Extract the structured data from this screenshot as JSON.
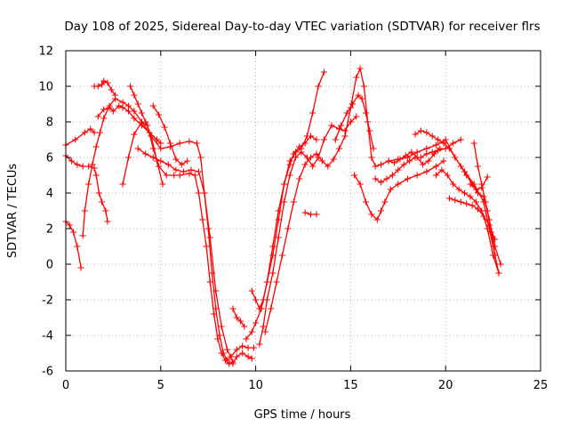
{
  "chart_data": {
    "type": "scatter",
    "title": "Day 108 of 2025, Sidereal Day-to-day VTEC variation (SDTVAR) for receiver flrs",
    "xlabel": "GPS time / hours",
    "ylabel": "SDTVAR / TECUs",
    "xlim": [
      0,
      25
    ],
    "ylim": [
      -6,
      12
    ],
    "x_ticks": [
      0,
      5,
      10,
      15,
      20,
      25
    ],
    "y_ticks": [
      -6,
      -4,
      -2,
      0,
      2,
      4,
      6,
      8,
      10,
      12
    ],
    "grid": true,
    "marker": "+",
    "color": "#ff0000",
    "series": [
      {
        "x": [
          0.0,
          0.5,
          1.0,
          1.3,
          1.5
        ],
        "y": [
          6.7,
          7.0,
          7.4,
          7.6,
          7.4
        ]
      },
      {
        "x": [
          0.0,
          0.3,
          0.6,
          0.9,
          1.2,
          1.5,
          1.6,
          1.75,
          1.9,
          2.1,
          2.2
        ],
        "y": [
          6.1,
          5.8,
          5.6,
          5.5,
          5.5,
          5.4,
          5.0,
          4.0,
          3.5,
          3.0,
          2.4
        ]
      },
      {
        "x": [
          0.0,
          0.2,
          0.4,
          0.6,
          0.8
        ],
        "y": [
          2.4,
          2.2,
          1.8,
          1.0,
          -0.2
        ]
      },
      {
        "x": [
          0.9,
          1.0,
          1.2,
          1.4,
          1.6,
          1.8,
          2.0,
          2.3,
          2.6,
          3.0,
          3.3,
          3.6,
          4.0,
          4.5,
          5.0,
          5.5,
          6.0,
          6.5,
          6.9,
          7.1,
          7.3,
          7.5,
          7.7,
          7.9,
          8.1,
          8.3,
          8.5,
          8.7,
          9.0,
          9.3,
          9.6,
          9.9
        ],
        "y": [
          1.6,
          3.0,
          4.5,
          5.6,
          6.6,
          7.4,
          8.2,
          8.9,
          9.3,
          9.1,
          8.9,
          8.6,
          8.0,
          7.2,
          6.5,
          6.6,
          6.8,
          6.9,
          6.8,
          6.0,
          4.0,
          2.0,
          -0.5,
          -2.5,
          -4.0,
          -5.0,
          -5.4,
          -5.2,
          -4.8,
          -4.6,
          -4.7,
          -4.7
        ]
      },
      {
        "x": [
          1.5,
          1.7,
          1.9,
          2.0,
          2.2,
          2.4,
          2.6
        ],
        "y": [
          10.0,
          10.0,
          10.1,
          10.3,
          10.2,
          9.8,
          9.5
        ]
      },
      {
        "x": [
          1.7,
          2.0,
          2.3,
          2.5,
          2.8,
          3.0,
          3.3,
          3.6,
          4.0,
          4.4,
          4.8,
          5.0
        ],
        "y": [
          8.3,
          8.7,
          8.8,
          8.6,
          8.9,
          8.8,
          8.6,
          8.2,
          7.8,
          7.4,
          7.0,
          6.8
        ]
      },
      {
        "x": [
          3.0,
          3.3,
          3.6,
          4.0,
          4.3,
          4.6,
          4.9,
          5.3,
          5.7,
          6.0,
          6.5,
          6.8,
          7.0,
          7.2,
          7.4,
          7.6,
          7.8,
          8.0,
          8.2,
          8.4,
          8.6,
          8.8
        ],
        "y": [
          4.5,
          6.0,
          7.3,
          8.0,
          7.8,
          6.5,
          5.5,
          5.0,
          5.0,
          5.0,
          5.1,
          5.0,
          4.0,
          2.5,
          1.0,
          -1.0,
          -2.8,
          -4.2,
          -5.0,
          -5.4,
          -5.6,
          -5.5
        ]
      },
      {
        "x": [
          3.4,
          3.6,
          3.8,
          4.0,
          4.2,
          4.5,
          4.8,
          5.1
        ],
        "y": [
          10.0,
          9.5,
          9.0,
          8.5,
          8.0,
          7.2,
          5.8,
          4.5
        ]
      },
      {
        "x": [
          3.8,
          4.2,
          4.6,
          5.0,
          5.4,
          5.8,
          6.2,
          6.6,
          7.0,
          7.3,
          7.6,
          7.9,
          8.2,
          8.5,
          8.8
        ],
        "y": [
          6.5,
          6.2,
          6.0,
          5.8,
          5.6,
          5.3,
          5.2,
          5.3,
          5.2,
          4.0,
          1.5,
          -1.5,
          -3.5,
          -4.8,
          -5.5
        ]
      },
      {
        "x": [
          4.6,
          4.9,
          5.2,
          5.5,
          5.8,
          6.1,
          6.4
        ],
        "y": [
          8.9,
          8.4,
          7.7,
          6.8,
          5.9,
          5.6,
          5.8
        ]
      },
      {
        "x": [
          8.8,
          9.0,
          9.3,
          9.6,
          9.8
        ],
        "y": [
          -5.6,
          -5.2,
          -5.0,
          -5.2,
          -5.3
        ]
      },
      {
        "x": [
          8.8,
          9.0,
          9.2,
          9.4
        ],
        "y": [
          -2.5,
          -3.0,
          -3.2,
          -3.5
        ]
      },
      {
        "x": [
          9.5,
          9.8,
          10.0,
          10.3,
          10.6,
          10.9,
          11.2,
          11.5,
          11.8,
          12.0,
          12.3,
          12.6,
          12.9,
          13.2
        ],
        "y": [
          -4.2,
          -3.8,
          -3.3,
          -2.5,
          -1.0,
          1.0,
          3.0,
          4.5,
          5.6,
          6.2,
          6.6,
          6.8,
          7.2,
          7.0
        ]
      },
      {
        "x": [
          9.8,
          10.0,
          10.2,
          10.4,
          10.6,
          10.9,
          11.2,
          11.5,
          11.8,
          12.1,
          12.4,
          12.7,
          13.0,
          13.3,
          13.6
        ],
        "y": [
          -1.5,
          -2.0,
          -2.5,
          -2.0,
          -1.0,
          0.5,
          2.5,
          4.5,
          5.8,
          6.3,
          6.5,
          7.2,
          8.5,
          10.0,
          10.8
        ]
      },
      {
        "x": [
          10.2,
          10.4,
          10.6,
          10.9,
          11.2,
          11.5,
          11.8,
          12.1,
          12.4,
          12.7,
          13.0,
          13.3,
          13.6,
          14.0,
          14.4,
          14.7,
          15.0,
          15.3
        ],
        "y": [
          -4.5,
          -3.5,
          -2.0,
          -0.5,
          1.5,
          3.5,
          5.0,
          6.0,
          6.3,
          6.0,
          5.5,
          6.0,
          7.0,
          7.8,
          7.6,
          7.5,
          8.0,
          8.3
        ]
      },
      {
        "x": [
          10.5,
          10.8,
          11.1,
          11.4,
          11.7,
          12.0,
          12.3,
          12.6,
          12.9,
          13.2,
          13.5,
          13.8,
          14.1,
          14.4,
          14.7,
          15.0,
          15.3,
          15.5,
          15.7,
          15.9,
          16.1,
          16.3,
          16.6,
          17.0,
          17.5,
          18.0,
          18.5,
          19.0,
          19.5,
          20.0,
          20.5,
          21.0,
          21.5,
          22.0,
          22.3,
          22.6
        ],
        "y": [
          -3.8,
          -2.5,
          -1.0,
          0.5,
          2.0,
          3.5,
          4.8,
          5.6,
          6.0,
          6.2,
          5.8,
          5.5,
          5.9,
          6.5,
          7.2,
          8.8,
          10.5,
          11.0,
          10.0,
          8.0,
          6.0,
          5.5,
          5.6,
          5.8,
          5.9,
          6.0,
          6.3,
          6.5,
          6.7,
          7.0,
          6.0,
          5.2,
          4.5,
          3.5,
          2.0,
          0.5
        ]
      },
      {
        "x": [
          12.6,
          12.9,
          13.2
        ],
        "y": [
          2.9,
          2.8,
          2.8
        ]
      },
      {
        "x": [
          14.2,
          14.5,
          14.8,
          15.1,
          15.4,
          15.6,
          15.8,
          16.0,
          16.2
        ],
        "y": [
          7.0,
          7.8,
          8.5,
          9.0,
          9.5,
          9.3,
          8.5,
          7.5,
          6.5
        ]
      },
      {
        "x": [
          15.2,
          15.5,
          15.8,
          16.1,
          16.4,
          16.6,
          16.8,
          17.1,
          17.5,
          18.0,
          18.5,
          19.0,
          19.5,
          19.9
        ],
        "y": [
          5.0,
          4.5,
          3.5,
          2.8,
          2.5,
          3.0,
          3.5,
          4.2,
          4.5,
          4.8,
          5.0,
          5.2,
          5.5,
          5.8
        ]
      },
      {
        "x": [
          16.3,
          16.6,
          16.9,
          17.2,
          17.5,
          17.8,
          18.1,
          18.4,
          18.7,
          19.0,
          19.3,
          19.6,
          20.0,
          20.4,
          20.8
        ],
        "y": [
          4.8,
          4.6,
          4.8,
          5.0,
          5.3,
          5.6,
          5.8,
          6.0,
          6.0,
          6.2,
          6.3,
          6.4,
          6.5,
          6.8,
          7.0
        ]
      },
      {
        "x": [
          17.0,
          17.3,
          17.6,
          17.9,
          18.2,
          18.5,
          18.8,
          19.1,
          19.4,
          19.7
        ],
        "y": [
          5.8,
          5.7,
          5.9,
          6.1,
          6.3,
          6.0,
          5.6,
          5.8,
          6.2,
          6.5
        ]
      },
      {
        "x": [
          18.4,
          18.7,
          19.0,
          19.3,
          19.6,
          19.9,
          20.2,
          20.5,
          20.8,
          21.1,
          21.4,
          21.7,
          22.0,
          22.2,
          22.4,
          22.6,
          22.8
        ],
        "y": [
          7.3,
          7.5,
          7.4,
          7.2,
          7.0,
          6.8,
          6.5,
          6.0,
          5.5,
          5.0,
          4.5,
          4.0,
          3.8,
          3.0,
          1.8,
          0.5,
          -0.5
        ]
      },
      {
        "x": [
          19.5,
          19.8,
          20.1,
          20.4,
          20.7,
          21.0,
          21.3,
          21.6,
          21.9,
          22.2,
          22.5,
          22.8
        ],
        "y": [
          5.0,
          5.3,
          5.0,
          4.5,
          4.2,
          4.0,
          3.8,
          3.5,
          3.0,
          2.0,
          0.5,
          -0.5
        ]
      },
      {
        "x": [
          20.2,
          20.5,
          20.8,
          21.1,
          21.4,
          21.7,
          22.0,
          22.3,
          22.6
        ],
        "y": [
          3.7,
          3.6,
          3.5,
          3.4,
          3.3,
          3.1,
          2.7,
          2.2,
          1.4
        ]
      },
      {
        "x": [
          21.5,
          21.7,
          21.9,
          22.1,
          22.3,
          22.6,
          22.9
        ],
        "y": [
          6.8,
          5.5,
          4.5,
          3.5,
          2.5,
          1.0,
          0.0
        ]
      },
      {
        "x": [
          21.3,
          21.6,
          21.9,
          22.2
        ],
        "y": [
          4.5,
          4.2,
          4.3,
          4.9
        ]
      }
    ]
  }
}
